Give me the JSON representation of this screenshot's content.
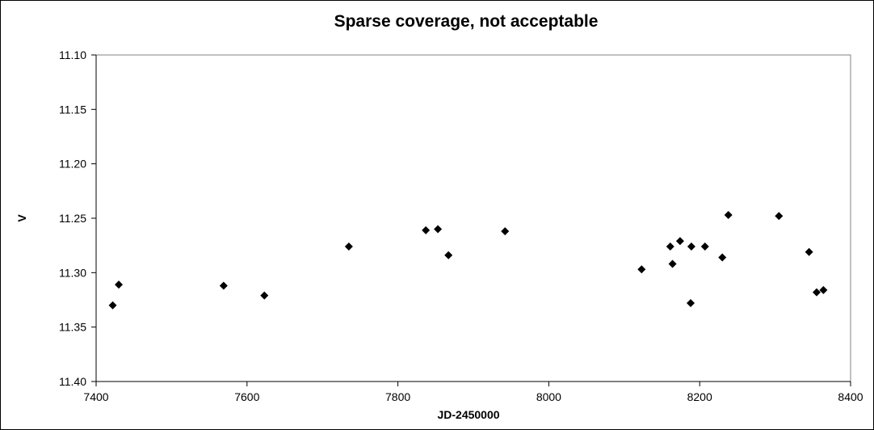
{
  "chart_data": {
    "type": "scatter",
    "title": "Sparse coverage, not acceptable",
    "xlabel": "JD-2450000",
    "ylabel": "V",
    "xlim": [
      7400,
      8400
    ],
    "ylim": [
      11.1,
      11.4
    ],
    "y_inverted": true,
    "grid": false,
    "legend": "none",
    "marker": "diamond",
    "marker_color": "#000000",
    "x_ticks": [
      "7400",
      "7600",
      "7800",
      "8000",
      "8200",
      "8400"
    ],
    "y_ticks": [
      "11.10",
      "11.15",
      "11.20",
      "11.25",
      "11.30",
      "11.35",
      "11.40"
    ],
    "points": [
      {
        "x": 7422,
        "y": 11.33
      },
      {
        "x": 7430,
        "y": 11.311
      },
      {
        "x": 7569,
        "y": 11.312
      },
      {
        "x": 7623,
        "y": 11.321
      },
      {
        "x": 7735,
        "y": 11.276
      },
      {
        "x": 7837,
        "y": 11.261
      },
      {
        "x": 7853,
        "y": 11.26
      },
      {
        "x": 7867,
        "y": 11.284
      },
      {
        "x": 7942,
        "y": 11.262
      },
      {
        "x": 8123,
        "y": 11.297
      },
      {
        "x": 8161,
        "y": 11.276
      },
      {
        "x": 8164,
        "y": 11.292
      },
      {
        "x": 8174,
        "y": 11.271
      },
      {
        "x": 8188,
        "y": 11.328
      },
      {
        "x": 8189,
        "y": 11.276
      },
      {
        "x": 8207,
        "y": 11.276
      },
      {
        "x": 8230,
        "y": 11.286
      },
      {
        "x": 8238,
        "y": 11.247
      },
      {
        "x": 8305,
        "y": 11.248
      },
      {
        "x": 8345,
        "y": 11.281
      },
      {
        "x": 8355,
        "y": 11.318
      },
      {
        "x": 8364,
        "y": 11.316
      }
    ]
  }
}
